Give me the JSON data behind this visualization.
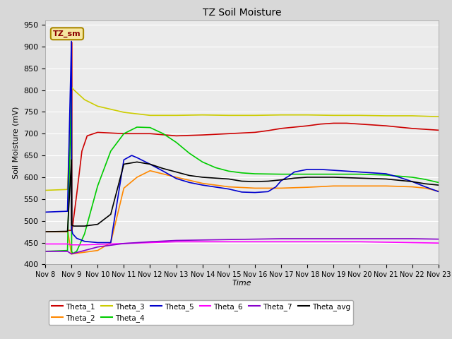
{
  "title": "TZ Soil Moisture",
  "xlabel": "Time",
  "ylabel": "Soil Moisture (mV)",
  "ylim": [
    400,
    960
  ],
  "xlim": [
    0,
    15
  ],
  "yticks": [
    400,
    450,
    500,
    550,
    600,
    650,
    700,
    750,
    800,
    850,
    900,
    950
  ],
  "xtick_labels": [
    "Nov 8",
    "Nov 9",
    "Nov 10",
    "Nov 11",
    "Nov 12",
    "Nov 13",
    "Nov 14",
    "Nov 15",
    "Nov 16",
    "Nov 17",
    "Nov 18",
    "Nov 19",
    "Nov 20",
    "Nov 21",
    "Nov 22",
    "Nov 23"
  ],
  "background_color": "#d8d8d8",
  "plot_bg_color": "#ebebeb",
  "grid_color": "#ffffff",
  "legend_label_color": "#8B0000",
  "series": {
    "Theta_1": {
      "color": "#cc0000",
      "points": [
        [
          0,
          475
        ],
        [
          0.85,
          475
        ],
        [
          0.87,
          478
        ],
        [
          1.0,
          478
        ],
        [
          1.01,
          910
        ],
        [
          1.02,
          478
        ],
        [
          1.05,
          490
        ],
        [
          1.2,
          560
        ],
        [
          1.4,
          660
        ],
        [
          1.6,
          695
        ],
        [
          2.0,
          703
        ],
        [
          3.0,
          700
        ],
        [
          4.0,
          700
        ],
        [
          5.0,
          695
        ],
        [
          6.0,
          697
        ],
        [
          7.0,
          700
        ],
        [
          8.0,
          703
        ],
        [
          8.5,
          707
        ],
        [
          9.0,
          712
        ],
        [
          9.5,
          715
        ],
        [
          10.0,
          718
        ],
        [
          10.5,
          722
        ],
        [
          11.0,
          724
        ],
        [
          11.5,
          724
        ],
        [
          12.0,
          722
        ],
        [
          12.5,
          720
        ],
        [
          13.0,
          718
        ],
        [
          13.5,
          715
        ],
        [
          14.0,
          712
        ],
        [
          14.5,
          710
        ],
        [
          15.0,
          708
        ]
      ]
    },
    "Theta_2": {
      "color": "#ff8800",
      "points": [
        [
          0,
          475
        ],
        [
          0.85,
          475
        ],
        [
          0.87,
          473
        ],
        [
          1.0,
          424
        ],
        [
          1.01,
          424
        ],
        [
          1.5,
          428
        ],
        [
          2.0,
          432
        ],
        [
          2.5,
          450
        ],
        [
          3.0,
          575
        ],
        [
          3.5,
          600
        ],
        [
          4.0,
          615
        ],
        [
          5.0,
          600
        ],
        [
          6.0,
          586
        ],
        [
          7.0,
          578
        ],
        [
          8.0,
          575
        ],
        [
          9.0,
          575
        ],
        [
          10.0,
          577
        ],
        [
          11.0,
          580
        ],
        [
          12.0,
          580
        ],
        [
          13.0,
          580
        ],
        [
          14.0,
          578
        ],
        [
          14.5,
          575
        ],
        [
          15.0,
          568
        ]
      ]
    },
    "Theta_3": {
      "color": "#cccc00",
      "points": [
        [
          0,
          570
        ],
        [
          0.85,
          572
        ],
        [
          1.0,
          807
        ],
        [
          1.1,
          800
        ],
        [
          1.5,
          778
        ],
        [
          2.0,
          763
        ],
        [
          3.0,
          749
        ],
        [
          4.0,
          742
        ],
        [
          5.0,
          742
        ],
        [
          6.0,
          743
        ],
        [
          7.0,
          742
        ],
        [
          8.0,
          742
        ],
        [
          9.0,
          743
        ],
        [
          10.0,
          743
        ],
        [
          11.0,
          742
        ],
        [
          12.0,
          742
        ],
        [
          13.0,
          741
        ],
        [
          14.0,
          741
        ],
        [
          14.5,
          740
        ],
        [
          15.0,
          739
        ]
      ]
    },
    "Theta_4": {
      "color": "#00cc00",
      "points": [
        [
          0,
          430
        ],
        [
          0.85,
          432
        ],
        [
          1.0,
          808
        ],
        [
          1.01,
          430
        ],
        [
          1.05,
          425
        ],
        [
          1.2,
          430
        ],
        [
          1.5,
          470
        ],
        [
          2.0,
          580
        ],
        [
          2.5,
          660
        ],
        [
          3.0,
          700
        ],
        [
          3.5,
          715
        ],
        [
          4.0,
          714
        ],
        [
          4.5,
          700
        ],
        [
          5.0,
          680
        ],
        [
          5.5,
          655
        ],
        [
          6.0,
          635
        ],
        [
          6.5,
          622
        ],
        [
          7.0,
          614
        ],
        [
          7.5,
          610
        ],
        [
          8.0,
          608
        ],
        [
          9.0,
          607
        ],
        [
          10.0,
          607
        ],
        [
          11.0,
          607
        ],
        [
          12.0,
          607
        ],
        [
          13.0,
          605
        ],
        [
          14.0,
          600
        ],
        [
          14.5,
          595
        ],
        [
          15.0,
          588
        ]
      ]
    },
    "Theta_5": {
      "color": "#0000cc",
      "points": [
        [
          0,
          520
        ],
        [
          0.85,
          522
        ],
        [
          1.0,
          912
        ],
        [
          1.01,
          480
        ],
        [
          1.05,
          470
        ],
        [
          1.2,
          460
        ],
        [
          1.5,
          453
        ],
        [
          2.0,
          450
        ],
        [
          2.5,
          450
        ],
        [
          3.0,
          640
        ],
        [
          3.3,
          650
        ],
        [
          3.5,
          645
        ],
        [
          4.0,
          630
        ],
        [
          4.5,
          614
        ],
        [
          5.0,
          597
        ],
        [
          5.5,
          588
        ],
        [
          6.0,
          582
        ],
        [
          7.0,
          573
        ],
        [
          7.5,
          566
        ],
        [
          8.0,
          565
        ],
        [
          8.5,
          567
        ],
        [
          8.8,
          578
        ],
        [
          9.0,
          592
        ],
        [
          9.3,
          603
        ],
        [
          9.5,
          612
        ],
        [
          10.0,
          618
        ],
        [
          10.5,
          618
        ],
        [
          11.0,
          616
        ],
        [
          11.5,
          614
        ],
        [
          12.0,
          612
        ],
        [
          12.5,
          610
        ],
        [
          13.0,
          608
        ],
        [
          13.5,
          600
        ],
        [
          14.0,
          590
        ],
        [
          14.5,
          578
        ],
        [
          15.0,
          567
        ]
      ]
    },
    "Theta_6": {
      "color": "#ff00ff",
      "points": [
        [
          0,
          447
        ],
        [
          0.85,
          447
        ],
        [
          1.0,
          445
        ],
        [
          1.5,
          445
        ],
        [
          2.0,
          446
        ],
        [
          3.0,
          448
        ],
        [
          4.0,
          450
        ],
        [
          5.0,
          452
        ],
        [
          6.0,
          452
        ],
        [
          7.0,
          452
        ],
        [
          8.0,
          452
        ],
        [
          9.0,
          452
        ],
        [
          10.0,
          452
        ],
        [
          11.0,
          452
        ],
        [
          12.0,
          452
        ],
        [
          13.0,
          451
        ],
        [
          14.0,
          450
        ],
        [
          15.0,
          449
        ]
      ]
    },
    "Theta_7": {
      "color": "#8800cc",
      "points": [
        [
          0,
          430
        ],
        [
          0.85,
          430
        ],
        [
          1.0,
          424
        ],
        [
          1.5,
          432
        ],
        [
          2.0,
          440
        ],
        [
          3.0,
          448
        ],
        [
          4.0,
          452
        ],
        [
          5.0,
          455
        ],
        [
          6.0,
          456
        ],
        [
          7.0,
          457
        ],
        [
          8.0,
          458
        ],
        [
          9.0,
          459
        ],
        [
          10.0,
          459
        ],
        [
          11.0,
          459
        ],
        [
          12.0,
          459
        ],
        [
          13.0,
          459
        ],
        [
          14.0,
          459
        ],
        [
          15.0,
          458
        ]
      ]
    },
    "Theta_avg": {
      "color": "#000000",
      "points": [
        [
          0,
          475
        ],
        [
          0.85,
          476
        ],
        [
          1.0,
          640
        ],
        [
          1.01,
          490
        ],
        [
          1.1,
          488
        ],
        [
          1.5,
          488
        ],
        [
          2.0,
          492
        ],
        [
          2.5,
          515
        ],
        [
          3.0,
          630
        ],
        [
          3.5,
          635
        ],
        [
          4.0,
          630
        ],
        [
          4.5,
          620
        ],
        [
          5.0,
          612
        ],
        [
          5.5,
          604
        ],
        [
          6.0,
          600
        ],
        [
          7.0,
          596
        ],
        [
          7.5,
          591
        ],
        [
          8.0,
          590
        ],
        [
          8.5,
          591
        ],
        [
          9.0,
          594
        ],
        [
          9.5,
          598
        ],
        [
          10.0,
          600
        ],
        [
          10.5,
          600
        ],
        [
          11.0,
          600
        ],
        [
          11.5,
          599
        ],
        [
          12.0,
          598
        ],
        [
          13.0,
          596
        ],
        [
          13.5,
          593
        ],
        [
          14.0,
          590
        ],
        [
          14.5,
          585
        ],
        [
          15.0,
          582
        ]
      ]
    }
  }
}
